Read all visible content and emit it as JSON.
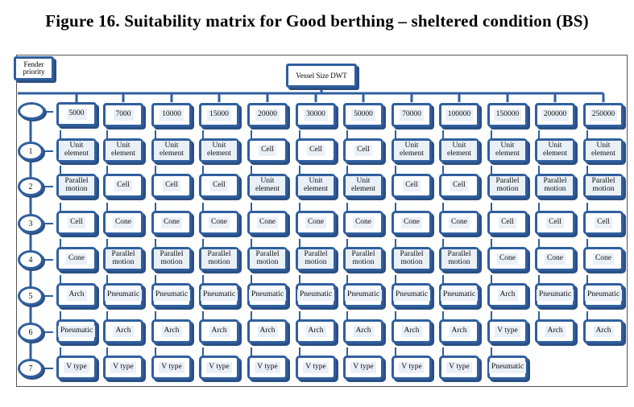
{
  "title": "Figure 16. Suitability matrix for Good berthing – sheltered condition (BS)",
  "fender_priority_label": "Fender priority",
  "vessel_size_label": "Vessel Size DWT",
  "columns": [
    "5000",
    "7000",
    "10000",
    "15000",
    "20000",
    "30000",
    "50000",
    "70000",
    "100000",
    "150000",
    "200000",
    "250000"
  ],
  "priorities": [
    "",
    "1",
    "2",
    "3",
    "4",
    "5",
    "6",
    "7"
  ],
  "matrix": [
    [
      "Unit element",
      "Unit element",
      "Unit element",
      "Unit element",
      "Cell",
      "Cell",
      "Cell",
      "Unit element",
      "Unit element",
      "Unit element",
      "Unit element",
      "Unit element"
    ],
    [
      "Parallel motion",
      "Cell",
      "Cell",
      "Cell",
      "Unit element",
      "Unit element",
      "Unit element",
      "Cell",
      "Cell",
      "Parallel motion",
      "Parallel motion",
      "Parallel motion"
    ],
    [
      "Cell",
      "Cone",
      "Cone",
      "Cone",
      "Cone",
      "Cone",
      "Cone",
      "Cone",
      "Cone",
      "Cell",
      "Cell",
      "Cell"
    ],
    [
      "Cone",
      "Parallel motion",
      "Parallel motion",
      "Parallel motion",
      "Parallel motion",
      "Parallel motion",
      "Parallel motion",
      "Parallel motion",
      "Parallel motion",
      "Cone",
      "Cone",
      "Cone"
    ],
    [
      "Arch",
      "Pneumatic",
      "Pneumatic",
      "Pneumatic",
      "Pneumatic",
      "Pneumatic",
      "Pneumatic",
      "Pneumatic",
      "Pneumatic",
      "Arch",
      "Pneumatic",
      "Pneumatic"
    ],
    [
      "Pneumatic",
      "Arch",
      "Arch",
      "Arch",
      "Arch",
      "Arch",
      "Arch",
      "Arch",
      "Arch",
      "V type",
      "Arch",
      "Arch"
    ],
    [
      "V type",
      "V type",
      "V type",
      "V type",
      "V type",
      "V type",
      "V type",
      "V type",
      "V type",
      "Pneumatic",
      "",
      ""
    ]
  ],
  "colors": {
    "box_border": "#2f5f9f",
    "box_shadow": "#2b4f82",
    "box_fill": "#eaf0f7"
  }
}
